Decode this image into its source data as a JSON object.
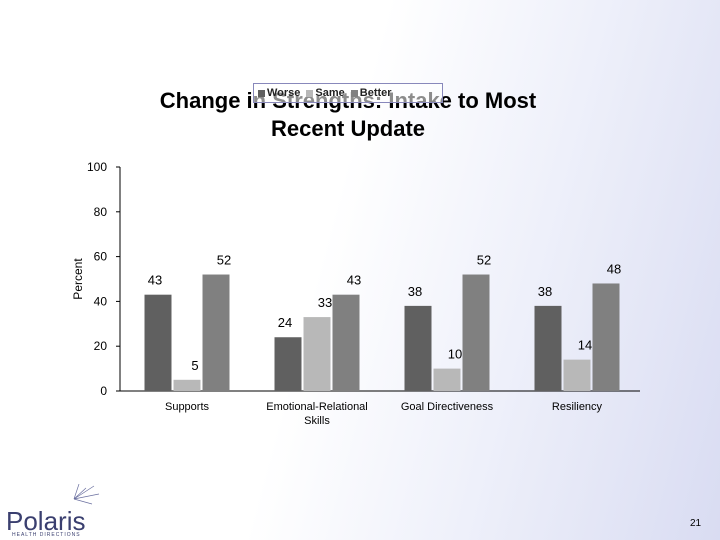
{
  "chart_data": {
    "type": "bar",
    "title": "Change in Strengths: Intake to Most Recent Update",
    "title_lines": [
      "Change in Strengths:  Intake to Most",
      "Recent Update"
    ],
    "ylabel": "Percent",
    "xlabel": "",
    "ylim": [
      0,
      100
    ],
    "yticks": [
      0,
      20,
      40,
      60,
      80,
      100
    ],
    "categories": [
      "Supports",
      "Emotional-Relational Skills",
      "Goal Directiveness",
      "Resiliency"
    ],
    "category_lines": [
      [
        "Supports"
      ],
      [
        "Emotional-Relational",
        "Skills"
      ],
      [
        "Goal Directiveness"
      ],
      [
        "Resiliency"
      ]
    ],
    "series": [
      {
        "name": "Worse",
        "values": [
          43,
          24,
          38,
          38
        ],
        "color": "#606060"
      },
      {
        "name": "Same",
        "values": [
          5,
          33,
          10,
          14
        ],
        "color": "#b8b8b8"
      },
      {
        "name": "Better",
        "values": [
          52,
          43,
          52,
          48
        ],
        "color": "#808080"
      }
    ],
    "legend_position": "top",
    "grid": false
  },
  "legend": {
    "items": [
      "Worse",
      "Same",
      "Better"
    ]
  },
  "logo": {
    "text": "Polaris",
    "subtext": "HEALTH DIRECTIONS"
  },
  "page_number": "21"
}
